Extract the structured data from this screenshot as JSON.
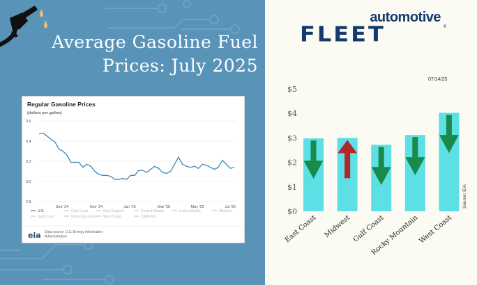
{
  "header": {
    "title_line1": "Average Gasoline Fuel",
    "title_line2": "Prices: July 2025"
  },
  "logo": {
    "top": "automotive",
    "main": "FLEET",
    "mark": "®"
  },
  "colors": {
    "left_bg": "#5a93b8",
    "right_bg": "#fbfbf4",
    "bar": "#5ce0e6",
    "arrow_down": "#1a8a4a",
    "arrow_up": "#b3262a",
    "eia_line": "#3e86b2",
    "logo": "#153a6d"
  },
  "chart_data": [
    {
      "type": "line",
      "title": "Regular Gasoline Prices",
      "subtitle": "(dollars per gallon)",
      "ylim": [
        2.8,
        3.6
      ],
      "yticks": [
        "3.6",
        "3.4",
        "3.2",
        "3.0",
        "2.8"
      ],
      "xticks": [
        "Sep '24",
        "Nov '24",
        "Jan '25",
        "Mar '25",
        "May '25",
        "Jul '25"
      ],
      "grid": true,
      "legend": [
        "U.S.",
        "East Coast",
        "New England",
        "Central Atlantic",
        "Lower Atlantic",
        "Midwest",
        "Gulf Coast",
        "Rocky Mountain",
        "West Coast",
        "California"
      ],
      "source": "Data source: U.S. Energy Information Administration",
      "logo_text": "eia",
      "series": [
        {
          "name": "U.S.",
          "values": [
            3.47,
            3.48,
            3.45,
            3.42,
            3.39,
            3.32,
            3.3,
            3.26,
            3.19,
            3.19,
            3.19,
            3.14,
            3.17,
            3.15,
            3.1,
            3.07,
            3.06,
            3.06,
            3.05,
            3.02,
            3.02,
            3.03,
            3.02,
            3.06,
            3.06,
            3.11,
            3.11,
            3.09,
            3.12,
            3.15,
            3.13,
            3.09,
            3.08,
            3.1,
            3.17,
            3.24,
            3.17,
            3.15,
            3.14,
            3.15,
            3.13,
            3.17,
            3.16,
            3.14,
            3.12,
            3.14,
            3.21,
            3.17,
            3.13,
            3.14
          ]
        }
      ]
    },
    {
      "type": "bar",
      "date": "07/14/25",
      "categories": [
        "East Coast",
        "Midwest",
        "Gulf Coast",
        "Rocky Mountain",
        "West Coast"
      ],
      "values": [
        2.98,
        3.0,
        2.72,
        3.12,
        4.03
      ],
      "directions": [
        "down",
        "up",
        "down",
        "down",
        "down"
      ],
      "ylim": [
        0,
        5
      ],
      "yticks": [
        "$0",
        "$1",
        "$2",
        "$3",
        "$4",
        "$5"
      ],
      "source": "Source: EIA"
    }
  ]
}
